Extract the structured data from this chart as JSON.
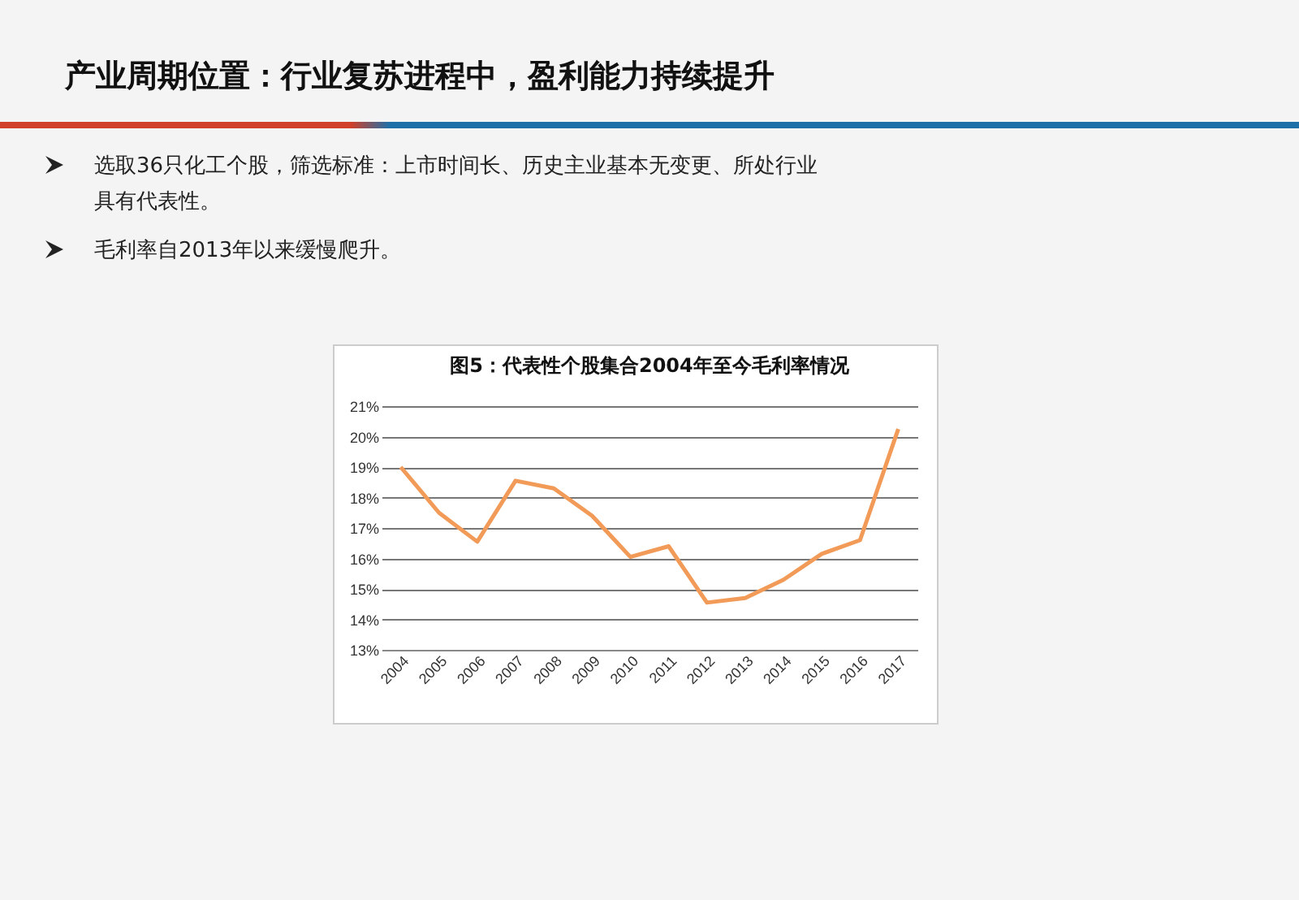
{
  "chart_data": {
    "type": "line",
    "title": "图5：代表性个股集合2004年至今毛利率情况",
    "annotations": [
      "产业周期位置：行业复苏进程中，盈利能力持续提升",
      "选取36只化工个股，筛选标准：上市时间长、历史主业基本无变更、所处行业具有代表性。",
      "毛利率自2013年以来缓慢爬升。"
    ],
    "categories": [
      "2004",
      "2005",
      "2006",
      "2007",
      "2008",
      "2009",
      "2010",
      "2011",
      "2012",
      "2013",
      "2014",
      "2015",
      "2016",
      "2017"
    ],
    "values": [
      19.0,
      17.5,
      16.55,
      18.55,
      18.3,
      17.4,
      16.05,
      16.4,
      14.55,
      14.7,
      15.3,
      16.15,
      16.6,
      20.25
    ],
    "color": "#f29a57",
    "ylim": [
      13,
      21
    ],
    "yticks": [
      {
        "value": 13,
        "label": "13%"
      },
      {
        "value": 14,
        "label": "14%"
      },
      {
        "value": 15,
        "label": "15%"
      },
      {
        "value": 16,
        "label": "16%"
      },
      {
        "value": 17,
        "label": "17%"
      },
      {
        "value": 18,
        "label": "18%"
      },
      {
        "value": 19,
        "label": "19%"
      },
      {
        "value": 20,
        "label": "20%"
      },
      {
        "value": 21,
        "label": "21%"
      }
    ],
    "grid": "y",
    "marker": "none"
  }
}
